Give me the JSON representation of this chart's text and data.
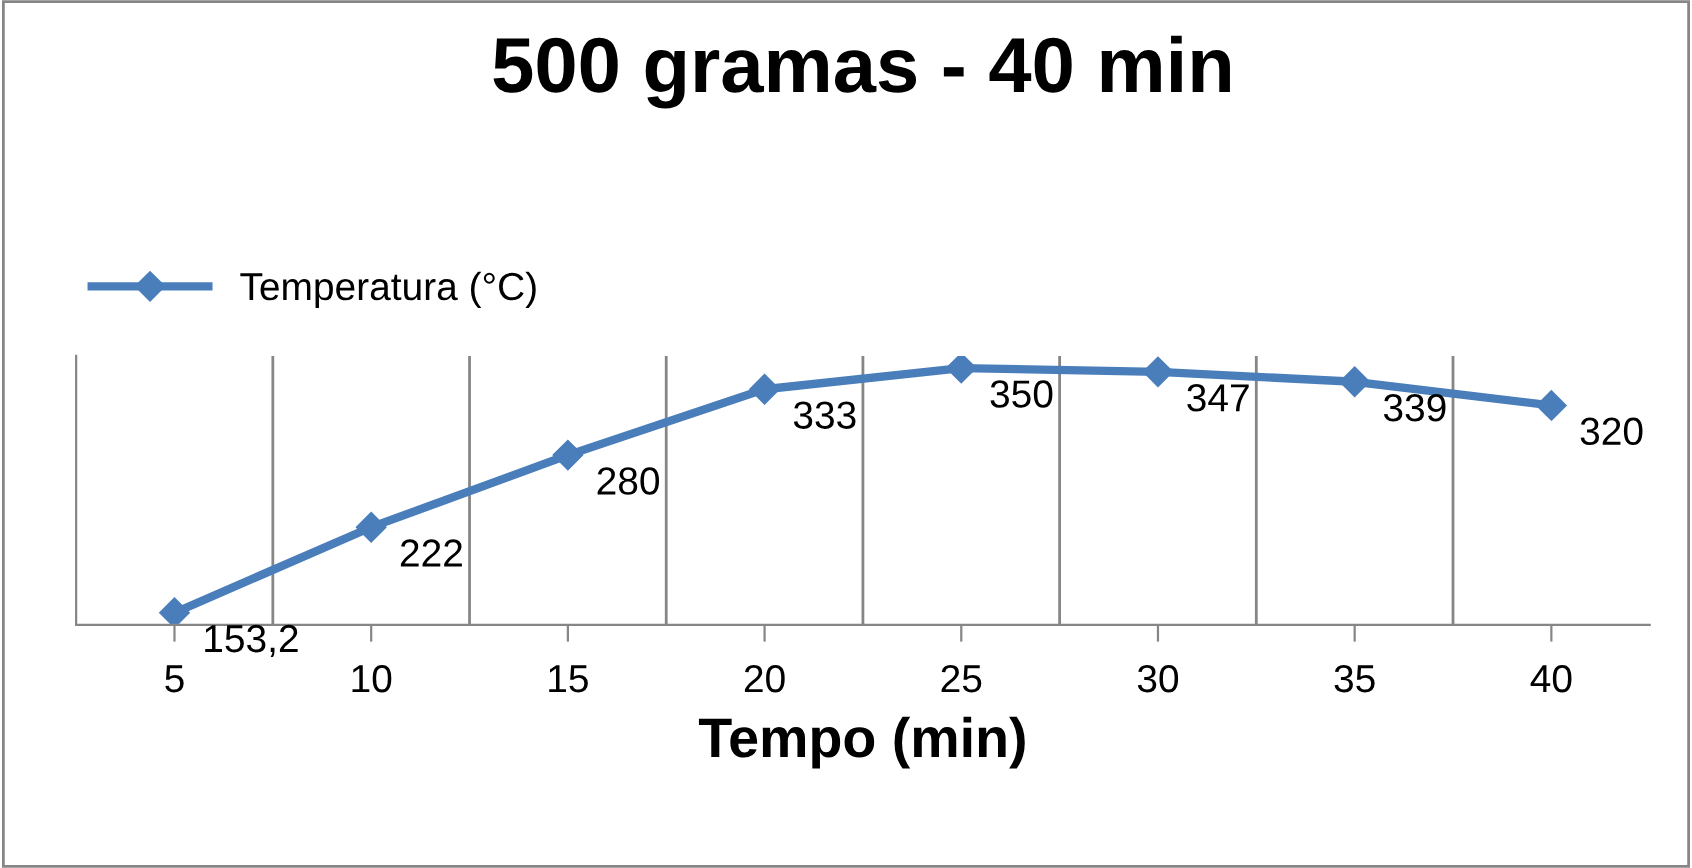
{
  "chart_data": {
    "type": "line",
    "title": "500 gramas - 40 min",
    "xlabel": "Tempo (min)",
    "categories": [
      "5",
      "10",
      "15",
      "20",
      "25",
      "30",
      "35",
      "40"
    ],
    "series": [
      {
        "name": "Temperatura (°C)",
        "color": "#4a7ebb",
        "values": [
          153.2,
          222,
          280,
          333,
          350,
          347,
          339,
          320
        ],
        "value_labels": [
          "153,2",
          "222",
          "280",
          "333",
          "350",
          "347",
          "339",
          "320"
        ]
      }
    ],
    "marker": "diamond",
    "line_style": "solid",
    "grid": "x",
    "legend": "top left",
    "tick_labels": "x"
  }
}
